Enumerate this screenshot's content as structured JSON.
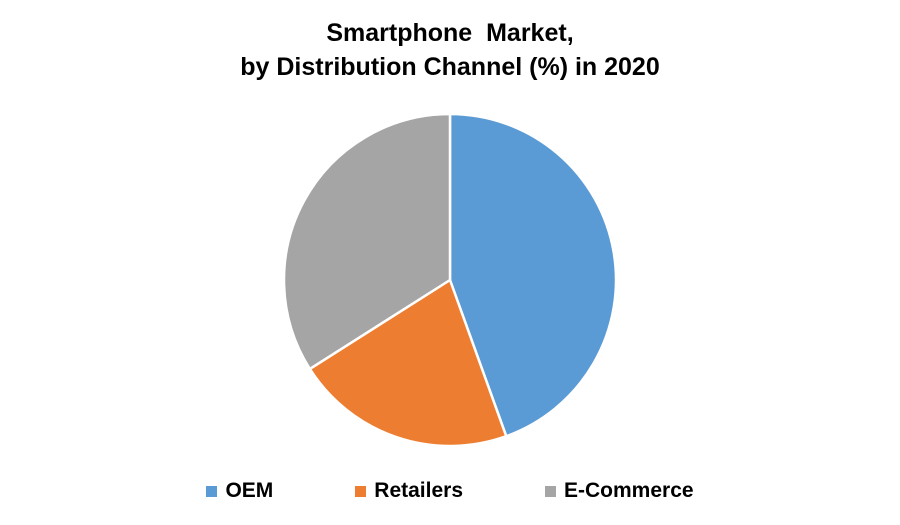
{
  "chart_data": {
    "type": "pie",
    "title": "Smartphone  Market,",
    "subtitle": "by Distribution Channel (%) in 2020",
    "series": [
      {
        "name": "OEM",
        "value": 44.5,
        "color": "#5B9BD5"
      },
      {
        "name": "Retailers",
        "value": 21.5,
        "color": "#ED7D31"
      },
      {
        "name": "E-Commerce",
        "value": 34.0,
        "color": "#A5A5A5"
      }
    ],
    "legend_position": "bottom",
    "start_angle": "top, clockwise"
  }
}
